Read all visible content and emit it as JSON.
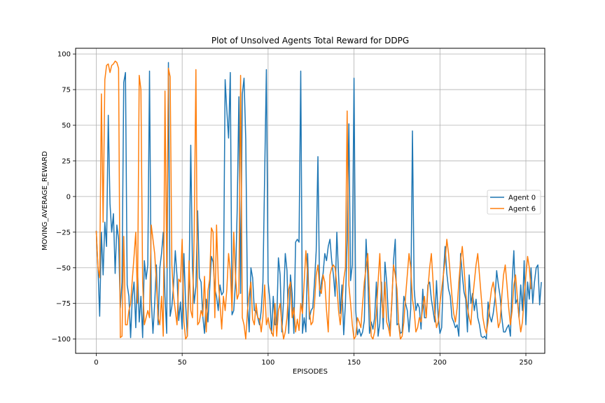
{
  "chart_data": {
    "type": "line",
    "title": "Plot of Unsolved Agents Total Reward for DDPG",
    "xlabel": "EPISODES",
    "ylabel": "MOVING_AVERAGE_REWARD",
    "xlim": [
      -12,
      261
    ],
    "ylim": [
      -110,
      104
    ],
    "xticks": [
      0,
      50,
      100,
      150,
      200,
      250
    ],
    "yticks": [
      -100,
      -75,
      -50,
      -25,
      0,
      25,
      50,
      75,
      100
    ],
    "xtick_labels": [
      "0",
      "50",
      "100",
      "150",
      "200",
      "250"
    ],
    "ytick_labels": [
      "−100",
      "−75",
      "−50",
      "−25",
      "0",
      "25",
      "50",
      "75",
      "100"
    ],
    "grid": true,
    "legend_position": "center-right",
    "series": [
      {
        "name": "Agent 0",
        "color": "#1f77b4",
        "x_start": 0,
        "values": [
          -24,
          -50,
          -84,
          -25,
          -55,
          -18,
          -35,
          57,
          -5,
          -25,
          -12,
          -54,
          -20,
          -30,
          -78,
          -60,
          80,
          87,
          -62,
          -70,
          -99,
          -70,
          -60,
          -92,
          -50,
          -88,
          -70,
          -99,
          -45,
          -58,
          -48,
          88,
          -72,
          -96,
          -75,
          -48,
          -90,
          -50,
          -40,
          -25,
          -70,
          -96,
          94,
          -84,
          -77,
          -62,
          -38,
          -56,
          -87,
          -74,
          -93,
          -40,
          -75,
          -98,
          -60,
          36,
          -50,
          -75,
          -63,
          -10,
          -57,
          -60,
          -84,
          -96,
          -72,
          -88,
          -65,
          -42,
          -46,
          -65,
          -70,
          -80,
          -62,
          -69,
          -67,
          82,
          60,
          41,
          87,
          -83,
          -80,
          -61,
          -10,
          70,
          -68,
          72,
          83,
          40,
          -75,
          -95,
          -50,
          -57,
          -80,
          -80,
          -85,
          -90,
          -80,
          -60,
          15,
          89,
          -60,
          -72,
          -96,
          -70,
          -90,
          -90,
          -43,
          -55,
          -95,
          -73,
          -40,
          -52,
          -96,
          -55,
          -68,
          -96,
          -32,
          -30,
          -32,
          88,
          -96,
          -85,
          -95,
          -40,
          -86,
          -80,
          -78,
          -60,
          -38,
          28,
          -70,
          -60,
          -54,
          -40,
          -45,
          -35,
          -30,
          -45,
          -55,
          -70,
          -25,
          -55,
          -82,
          -62,
          -97,
          -75,
          -30,
          51,
          -59,
          -48,
          83,
          -80,
          -97,
          -93,
          -98,
          -95,
          -87,
          -30,
          -55,
          -96,
          -88,
          -93,
          -85,
          -60,
          -98,
          -89,
          -60,
          -93,
          -46,
          -60,
          -85,
          -94,
          -75,
          -45,
          -30,
          -90,
          -89,
          -96,
          -95,
          -70,
          -75,
          -80,
          -95,
          -79,
          46,
          -65,
          -80,
          -75,
          -78,
          -93,
          -65,
          -85,
          -85,
          -62,
          -60,
          -72,
          -80,
          -88,
          -59,
          -85,
          -96,
          -92,
          -55,
          -35,
          -54,
          -65,
          -70,
          -85,
          -88,
          -92,
          -90,
          -98,
          -40,
          -55,
          -67,
          -72,
          -95,
          -55,
          -75,
          -68,
          -80,
          -72,
          -85,
          -90,
          -98,
          -99,
          -98,
          -100,
          -74,
          -84,
          -88,
          -82,
          -72,
          -52,
          -62,
          -70,
          -85,
          -95,
          -95,
          -92,
          -90,
          -98,
          -60,
          -38,
          -75,
          -72,
          -85,
          -62,
          -80,
          -45,
          -90,
          -60,
          -72,
          -50,
          -75,
          -60,
          -50,
          -48,
          -76,
          -60
        ]
      },
      {
        "name": "Agent 6",
        "color": "#ff7f0e",
        "x_start": 0,
        "values": [
          -24,
          -50,
          -57,
          72,
          -18,
          82,
          92,
          93,
          87,
          92,
          93,
          95,
          94,
          90,
          -99,
          -98,
          -28,
          -90,
          -90,
          -80,
          -75,
          -58,
          -42,
          -25,
          -75,
          85,
          75,
          -60,
          -90,
          -85,
          -80,
          -85,
          -20,
          -30,
          -40,
          -60,
          -85,
          -90,
          -70,
          -98,
          74,
          -50,
          90,
          84,
          -48,
          -70,
          -80,
          -90,
          -58,
          -60,
          -30,
          -88,
          -100,
          -98,
          -45,
          -80,
          -85,
          -25,
          89,
          -90,
          -88,
          -80,
          -84,
          -56,
          -95,
          -66,
          -58,
          -22,
          -25,
          -85,
          -20,
          -58,
          -75,
          -93,
          -70,
          -80,
          -65,
          -40,
          -52,
          -80,
          -25,
          -55,
          -72,
          -68,
          85,
          -85,
          -90,
          -100,
          -80,
          -68,
          -60,
          -86,
          -90,
          -75,
          -85,
          -86,
          -95,
          -84,
          -62,
          -90,
          -85,
          -92,
          -95,
          -98,
          -75,
          -98,
          -80,
          -75,
          -90,
          -100,
          -95,
          -85,
          -65,
          -60,
          -85,
          -78,
          -95,
          -86,
          -94,
          -75,
          -82,
          -60,
          -38,
          -55,
          -80,
          -90,
          -88,
          -75,
          -55,
          -48,
          -65,
          -68,
          -55,
          -60,
          -80,
          -95,
          -55,
          -50,
          -48,
          -50,
          -62,
          -80,
          -90,
          -75,
          -58,
          -50,
          60,
          -62,
          -75,
          -90,
          -100,
          -98,
          -85,
          -88,
          -92,
          -75,
          -60,
          -50,
          -40,
          -70,
          -98,
          -100,
          -95,
          -82,
          -60,
          -40,
          -70,
          -85,
          -60,
          -88,
          -92,
          -98,
          -72,
          -48,
          -55,
          -65,
          -90,
          -100,
          -98,
          -88,
          -70,
          -55,
          -40,
          -50,
          -72,
          -80,
          -95,
          -92,
          -85,
          -88,
          -78,
          -70,
          -85,
          -65,
          -50,
          -40,
          -60,
          -82,
          -92,
          -88,
          -75,
          -65,
          -55,
          -45,
          -30,
          -40,
          -55,
          -70,
          -82,
          -88,
          -78,
          -60,
          -45,
          -35,
          -50,
          -68,
          -78,
          -85,
          -90,
          -72,
          -60,
          -48,
          -40,
          -55,
          -70,
          -85,
          -92,
          -96,
          -88,
          -75,
          -65,
          -60,
          -68,
          -80,
          -92,
          -88,
          -70,
          -55,
          -48,
          -62,
          -78,
          -90,
          -80,
          -62,
          -55,
          -70,
          -85,
          -95,
          -88,
          -70,
          -56,
          -42,
          -50,
          -65
        ]
      }
    ]
  }
}
